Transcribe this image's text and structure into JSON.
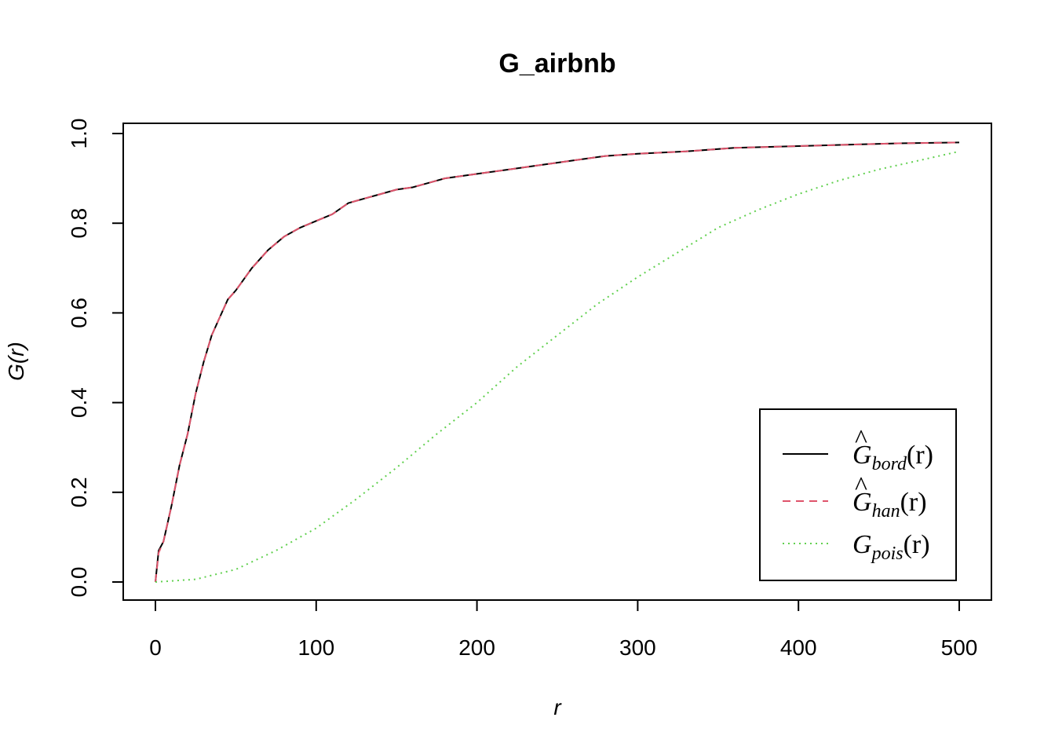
{
  "chart_data": {
    "type": "line",
    "title": "G_airbnb",
    "xlabel": "r",
    "ylabel": "G(r)",
    "xlim": [
      0,
      500
    ],
    "ylim": [
      0,
      1.0
    ],
    "xticks": [
      0,
      100,
      200,
      300,
      400,
      500
    ],
    "xtick_labels": [
      "0",
      "100",
      "200",
      "300",
      "400",
      "500"
    ],
    "yticks": [
      0.0,
      0.2,
      0.4,
      0.6,
      0.8,
      1.0
    ],
    "ytick_labels": [
      "0.0",
      "0.2",
      "0.4",
      "0.6",
      "0.8",
      "1.0"
    ],
    "legend_position": "bottom-right",
    "grid": false,
    "series": [
      {
        "key": "bord",
        "legend": {
          "hat": "^",
          "base": "G",
          "sub": "bord",
          "arg": "(r)"
        },
        "color": "#000000",
        "dash": "solid",
        "x": [
          0,
          2,
          5,
          10,
          15,
          20,
          25,
          30,
          35,
          40,
          45,
          50,
          60,
          70,
          80,
          90,
          100,
          110,
          120,
          130,
          140,
          150,
          160,
          170,
          180,
          190,
          200,
          220,
          240,
          260,
          280,
          300,
          330,
          360,
          400,
          430,
          460,
          500
        ],
        "y": [
          0.0,
          0.07,
          0.09,
          0.17,
          0.26,
          0.33,
          0.42,
          0.49,
          0.55,
          0.59,
          0.63,
          0.65,
          0.7,
          0.74,
          0.77,
          0.79,
          0.805,
          0.82,
          0.845,
          0.855,
          0.865,
          0.875,
          0.88,
          0.89,
          0.9,
          0.905,
          0.91,
          0.92,
          0.93,
          0.94,
          0.95,
          0.955,
          0.96,
          0.968,
          0.972,
          0.975,
          0.978,
          0.98
        ]
      },
      {
        "key": "han",
        "legend": {
          "hat": "^",
          "base": "G",
          "sub": "han",
          "arg": "(r)"
        },
        "color": "#df536b",
        "dash": "dashed",
        "x": [
          0,
          2,
          5,
          10,
          15,
          20,
          25,
          30,
          35,
          40,
          45,
          50,
          60,
          70,
          80,
          90,
          100,
          110,
          120,
          130,
          140,
          150,
          160,
          170,
          180,
          190,
          200,
          220,
          240,
          260,
          280,
          300,
          330,
          360,
          400,
          430,
          460,
          500
        ],
        "y": [
          0.0,
          0.065,
          0.09,
          0.17,
          0.26,
          0.33,
          0.42,
          0.49,
          0.55,
          0.59,
          0.63,
          0.65,
          0.7,
          0.74,
          0.77,
          0.79,
          0.805,
          0.82,
          0.845,
          0.855,
          0.865,
          0.875,
          0.88,
          0.89,
          0.9,
          0.905,
          0.91,
          0.92,
          0.93,
          0.94,
          0.95,
          0.955,
          0.96,
          0.968,
          0.972,
          0.975,
          0.978,
          0.98
        ]
      },
      {
        "key": "pois",
        "legend": {
          "hat": "",
          "base": "G",
          "sub": "pois",
          "arg": "(r)"
        },
        "color": "#61d04f",
        "dash": "dotted",
        "x": [
          0,
          25,
          50,
          75,
          100,
          125,
          150,
          175,
          200,
          225,
          250,
          275,
          300,
          325,
          350,
          375,
          400,
          425,
          450,
          475,
          500
        ],
        "y": [
          0.0,
          0.006,
          0.028,
          0.07,
          0.12,
          0.185,
          0.255,
          0.33,
          0.4,
          0.48,
          0.55,
          0.62,
          0.68,
          0.735,
          0.79,
          0.83,
          0.865,
          0.895,
          0.92,
          0.94,
          0.96
        ]
      }
    ]
  }
}
